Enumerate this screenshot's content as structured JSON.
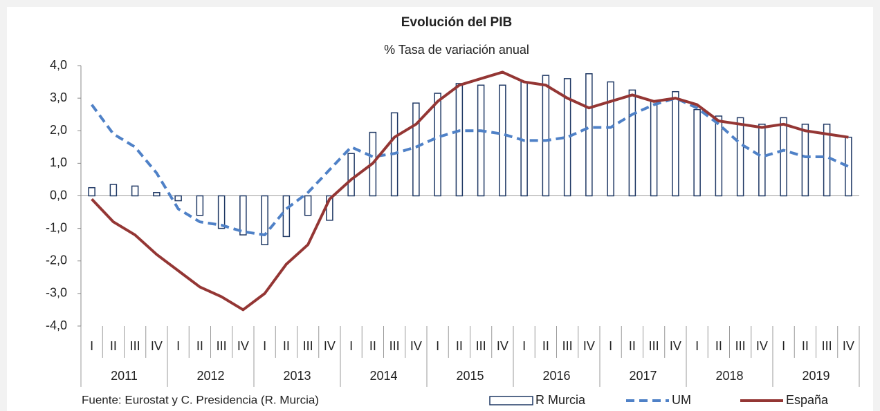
{
  "chart_data": {
    "type": "bar-line",
    "title": "Evolución del PIB",
    "subtitle": "% Tasa de variación anual",
    "source": "Fuente: Eurostat y C. Presidencia (R. Murcia)",
    "categories": [
      "I",
      "II",
      "III",
      "IV",
      "I",
      "II",
      "III",
      "IV",
      "I",
      "II",
      "III",
      "IV",
      "I",
      "II",
      "III",
      "IV",
      "I",
      "II",
      "III",
      "IV",
      "I",
      "II",
      "III",
      "IV",
      "I",
      "II",
      "III",
      "IV",
      "I",
      "II",
      "III",
      "IV",
      "I",
      "II",
      "III",
      "IV"
    ],
    "years": [
      "2011",
      "2012",
      "2013",
      "2014",
      "2015",
      "2016",
      "2017",
      "2018",
      "2019"
    ],
    "series": [
      {
        "name": "R Murcia",
        "kind": "bar",
        "color": "#1f3864",
        "values": [
          0.25,
          0.35,
          0.3,
          0.1,
          -0.15,
          -0.6,
          -1.0,
          -1.2,
          -1.5,
          -1.25,
          -0.6,
          -0.75,
          1.3,
          1.95,
          2.55,
          2.85,
          3.15,
          3.45,
          3.4,
          3.4,
          3.5,
          3.7,
          3.6,
          3.75,
          3.5,
          3.25,
          2.9,
          3.2,
          2.65,
          2.45,
          2.4,
          2.2,
          2.4,
          2.2,
          2.2,
          1.8
        ]
      },
      {
        "name": "UM",
        "kind": "dashed-line",
        "color": "#4f81c7",
        "values": [
          2.8,
          1.9,
          1.5,
          0.7,
          -0.4,
          -0.8,
          -0.9,
          -1.1,
          -1.2,
          -0.4,
          0.1,
          0.8,
          1.5,
          1.2,
          1.3,
          1.5,
          1.8,
          2.0,
          2.0,
          1.9,
          1.7,
          1.7,
          1.8,
          2.1,
          2.1,
          2.5,
          2.8,
          3.0,
          2.7,
          2.2,
          1.6,
          1.2,
          1.4,
          1.2,
          1.2,
          0.9
        ]
      },
      {
        "name": "España",
        "kind": "line",
        "color": "#943634",
        "values": [
          -0.1,
          -0.8,
          -1.2,
          -1.8,
          -2.3,
          -2.8,
          -3.1,
          -3.5,
          -3.0,
          -2.1,
          -1.5,
          -0.1,
          0.5,
          1.0,
          1.8,
          2.2,
          2.9,
          3.4,
          3.6,
          3.8,
          3.5,
          3.4,
          3.0,
          2.7,
          2.9,
          3.1,
          2.9,
          3.0,
          2.8,
          2.3,
          2.2,
          2.1,
          2.2,
          2.0,
          1.9,
          1.8
        ]
      }
    ],
    "ylim": [
      -4,
      4
    ],
    "yticks": [
      {
        "value": -4,
        "label": "-4,0"
      },
      {
        "value": -3,
        "label": "-3,0"
      },
      {
        "value": -2,
        "label": "-2,0"
      },
      {
        "value": -1,
        "label": "-1,0"
      },
      {
        "value": 0,
        "label": "0,0"
      },
      {
        "value": 1,
        "label": "1,0"
      },
      {
        "value": 2,
        "label": "2,0"
      },
      {
        "value": 3,
        "label": "3,0"
      },
      {
        "value": 4,
        "label": "4,0"
      }
    ],
    "grid": false
  }
}
